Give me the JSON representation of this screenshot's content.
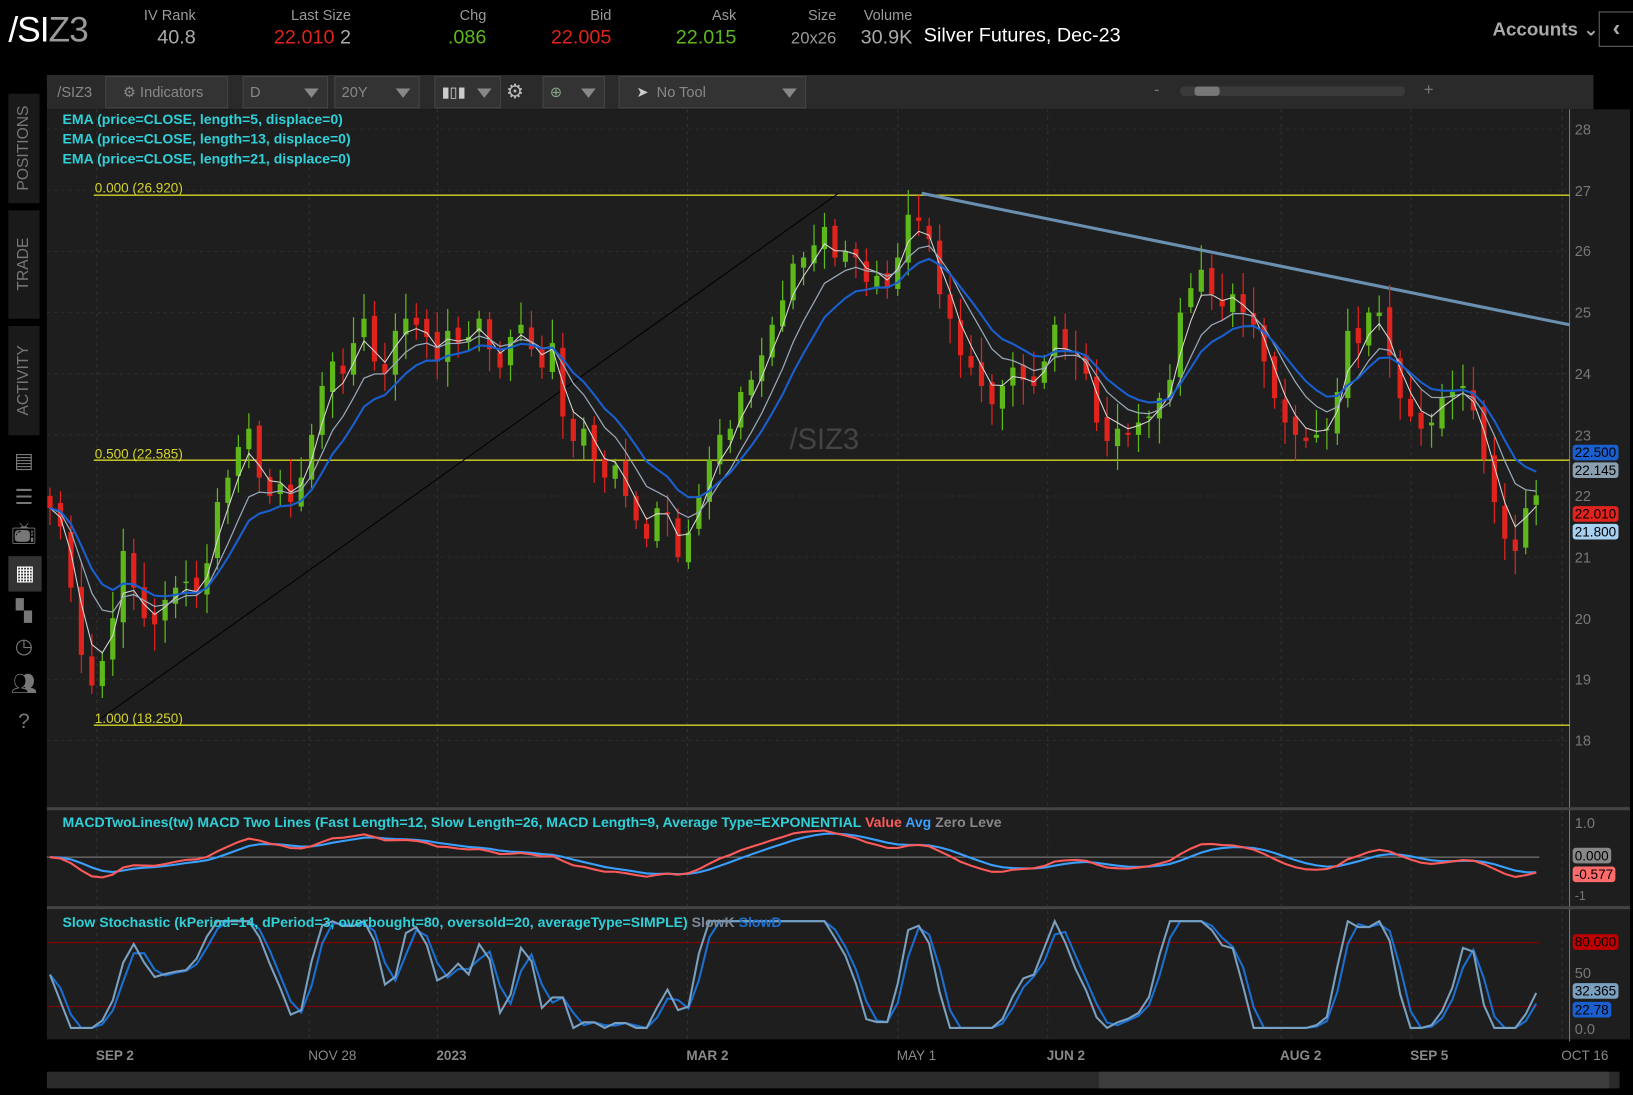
{
  "header": {
    "symbol_main": "/SI",
    "symbol_suffix": "Z3",
    "description": "Silver Futures, Dec-23",
    "accounts_label": "Accounts",
    "fields": [
      {
        "label": "IV Rank",
        "value": "40.8"
      },
      {
        "label": "Last Size",
        "value": "22.010",
        "extra": "2"
      },
      {
        "label": "Chg",
        "value": ".086"
      },
      {
        "label": "Bid",
        "value": "22.005"
      },
      {
        "label": "Ask",
        "value": "22.015"
      },
      {
        "label": "Size",
        "value": "20x26"
      },
      {
        "label": "Volume",
        "value": "30.9K"
      }
    ]
  },
  "toolbar": {
    "symbol": "/SIZ3",
    "indicators": "Indicators",
    "aggregation": "D",
    "time_frame": "20Y",
    "tool": "No Tool",
    "zoom_minus": "-",
    "zoom_plus": "+"
  },
  "sidebar": {
    "tabs": [
      "POSITIONS",
      "TRADE",
      "ACTIVITY"
    ],
    "icons": [
      "market-watch-icon",
      "list-icon",
      "tv-icon",
      "charts-icon",
      "grid-icon",
      "history-icon",
      "community-icon",
      "help-icon"
    ]
  },
  "colors": {
    "up": "#5fb81a",
    "down": "#e0231c",
    "ema5": "#d8d8d8",
    "ema13": "#98a8b8",
    "ema21": "#1a5fd0",
    "fib": "#d4d42a",
    "trend": "#6a8fb0",
    "macd_value": "#ff5a5a",
    "macd_avg": "#3aa0ff",
    "slowk": "#7aa0c0",
    "slowd": "#1a6fd0"
  },
  "studies": {
    "ema": [
      "EMA (price=CLOSE, length=5, displace=0)",
      "EMA (price=CLOSE, length=13, displace=0)",
      "EMA (price=CLOSE, length=21, displace=0)"
    ],
    "macd": "MACDTwoLines(tw) MACD Two Lines (Fast Length=12, Slow Length=26, MACD Length=9, Average Type=EXPONENTIAL",
    "macd_value": "Value",
    "macd_avg": "Avg",
    "macd_zero": "Zero Leve",
    "stoch": "Slow Stochastic (kPeriod=14, dPeriod=3, overbought=80, oversold=20, averageType=SIMPLE)",
    "slowk": "SlowK",
    "slowd": "SlowD"
  },
  "watermark": "/SIZ3",
  "chart_data": {
    "type": "candlestick",
    "price_axis": {
      "ticks": [
        "28",
        "27",
        "26",
        "25",
        "24",
        "23",
        "22",
        "21",
        "20",
        "19",
        "18"
      ],
      "range": [
        17.7,
        28.3
      ]
    },
    "x_ticks": [
      "SEP 2",
      "NOV 28",
      "2023",
      "MAR 2",
      "MAY 1",
      "JUN 2",
      "AUG 2",
      "SEP 5",
      "OCT 16"
    ],
    "fib": [
      {
        "label": "0.000 (26.920)",
        "price": 26.92
      },
      {
        "label": "0.500 (22.585)",
        "price": 22.585
      },
      {
        "label": "1.000 (18.250)",
        "price": 18.25
      }
    ],
    "trendline": {
      "from": 26.95,
      "to": 24.8
    },
    "approx_closes": [
      21.8,
      21.5,
      20.5,
      19.4,
      18.9,
      19.3,
      20.0,
      21.1,
      20.5,
      20.0,
      19.9,
      20.3,
      20.5,
      20.6,
      20.4,
      20.9,
      21.9,
      22.3,
      22.8,
      23.1,
      22.3,
      22.0,
      22.2,
      21.9,
      22.3,
      23.0,
      23.8,
      24.2,
      24.0,
      24.5,
      24.9,
      24.2,
      24.0,
      24.7,
      24.9,
      24.8,
      24.6,
      24.2,
      24.7,
      24.5,
      24.6,
      24.9,
      24.4,
      24.1,
      24.6,
      24.8,
      24.4,
      24.1,
      24.5,
      23.3,
      22.9,
      23.1,
      22.6,
      22.3,
      22.5,
      22.0,
      21.6,
      21.3,
      21.8,
      21.7,
      21.0,
      21.4,
      22.0,
      22.6,
      23.0,
      23.1,
      23.7,
      23.9,
      24.3,
      24.8,
      25.2,
      25.8,
      25.9,
      26.1,
      26.4,
      25.9,
      26.0,
      25.9,
      25.5,
      25.6,
      25.4,
      25.9,
      26.6,
      26.5,
      26.2,
      25.3,
      24.9,
      24.3,
      24.1,
      23.8,
      23.5,
      23.8,
      24.1,
      23.9,
      23.8,
      24.2,
      24.8,
      24.4,
      24.3,
      24.0,
      23.2,
      22.9,
      23.1,
      23.0,
      23.2,
      23.3,
      23.6,
      23.9,
      25.0,
      25.4,
      25.7,
      25.3,
      25.1,
      25.3,
      25.0,
      24.8,
      24.2,
      23.6,
      23.2,
      23.0,
      22.9,
      23.0,
      23.1,
      23.7,
      24.7,
      24.5,
      25.0,
      25.0,
      24.3,
      23.6,
      23.3,
      23.1,
      23.2,
      23.6,
      23.7,
      23.8,
      23.4,
      22.6,
      21.9,
      21.3,
      21.1,
      21.8,
      22.01
    ],
    "price_tags": [
      {
        "value": "22.500",
        "color": "#1a5fd0"
      },
      {
        "value": "22.145",
        "color": "#8aa0b0"
      },
      {
        "value": "22.010",
        "color": "#e0231c"
      },
      {
        "value": "21.800",
        "color": "#a8d0f0"
      }
    ],
    "macd_axis": [
      "1.0",
      "-1"
    ],
    "macd_tags": [
      {
        "value": "0.000",
        "color": "#888"
      },
      {
        "value": "-0.577",
        "color": "#ff6a6a"
      }
    ],
    "stoch_axis": [
      "50",
      "0.0"
    ],
    "stoch_tags": [
      {
        "value": "80.000",
        "color": "#c00000"
      },
      {
        "value": "32.365",
        "color": "#7aa0c0"
      },
      {
        "value": "22.78",
        "color": "#1a5fd0"
      }
    ]
  }
}
